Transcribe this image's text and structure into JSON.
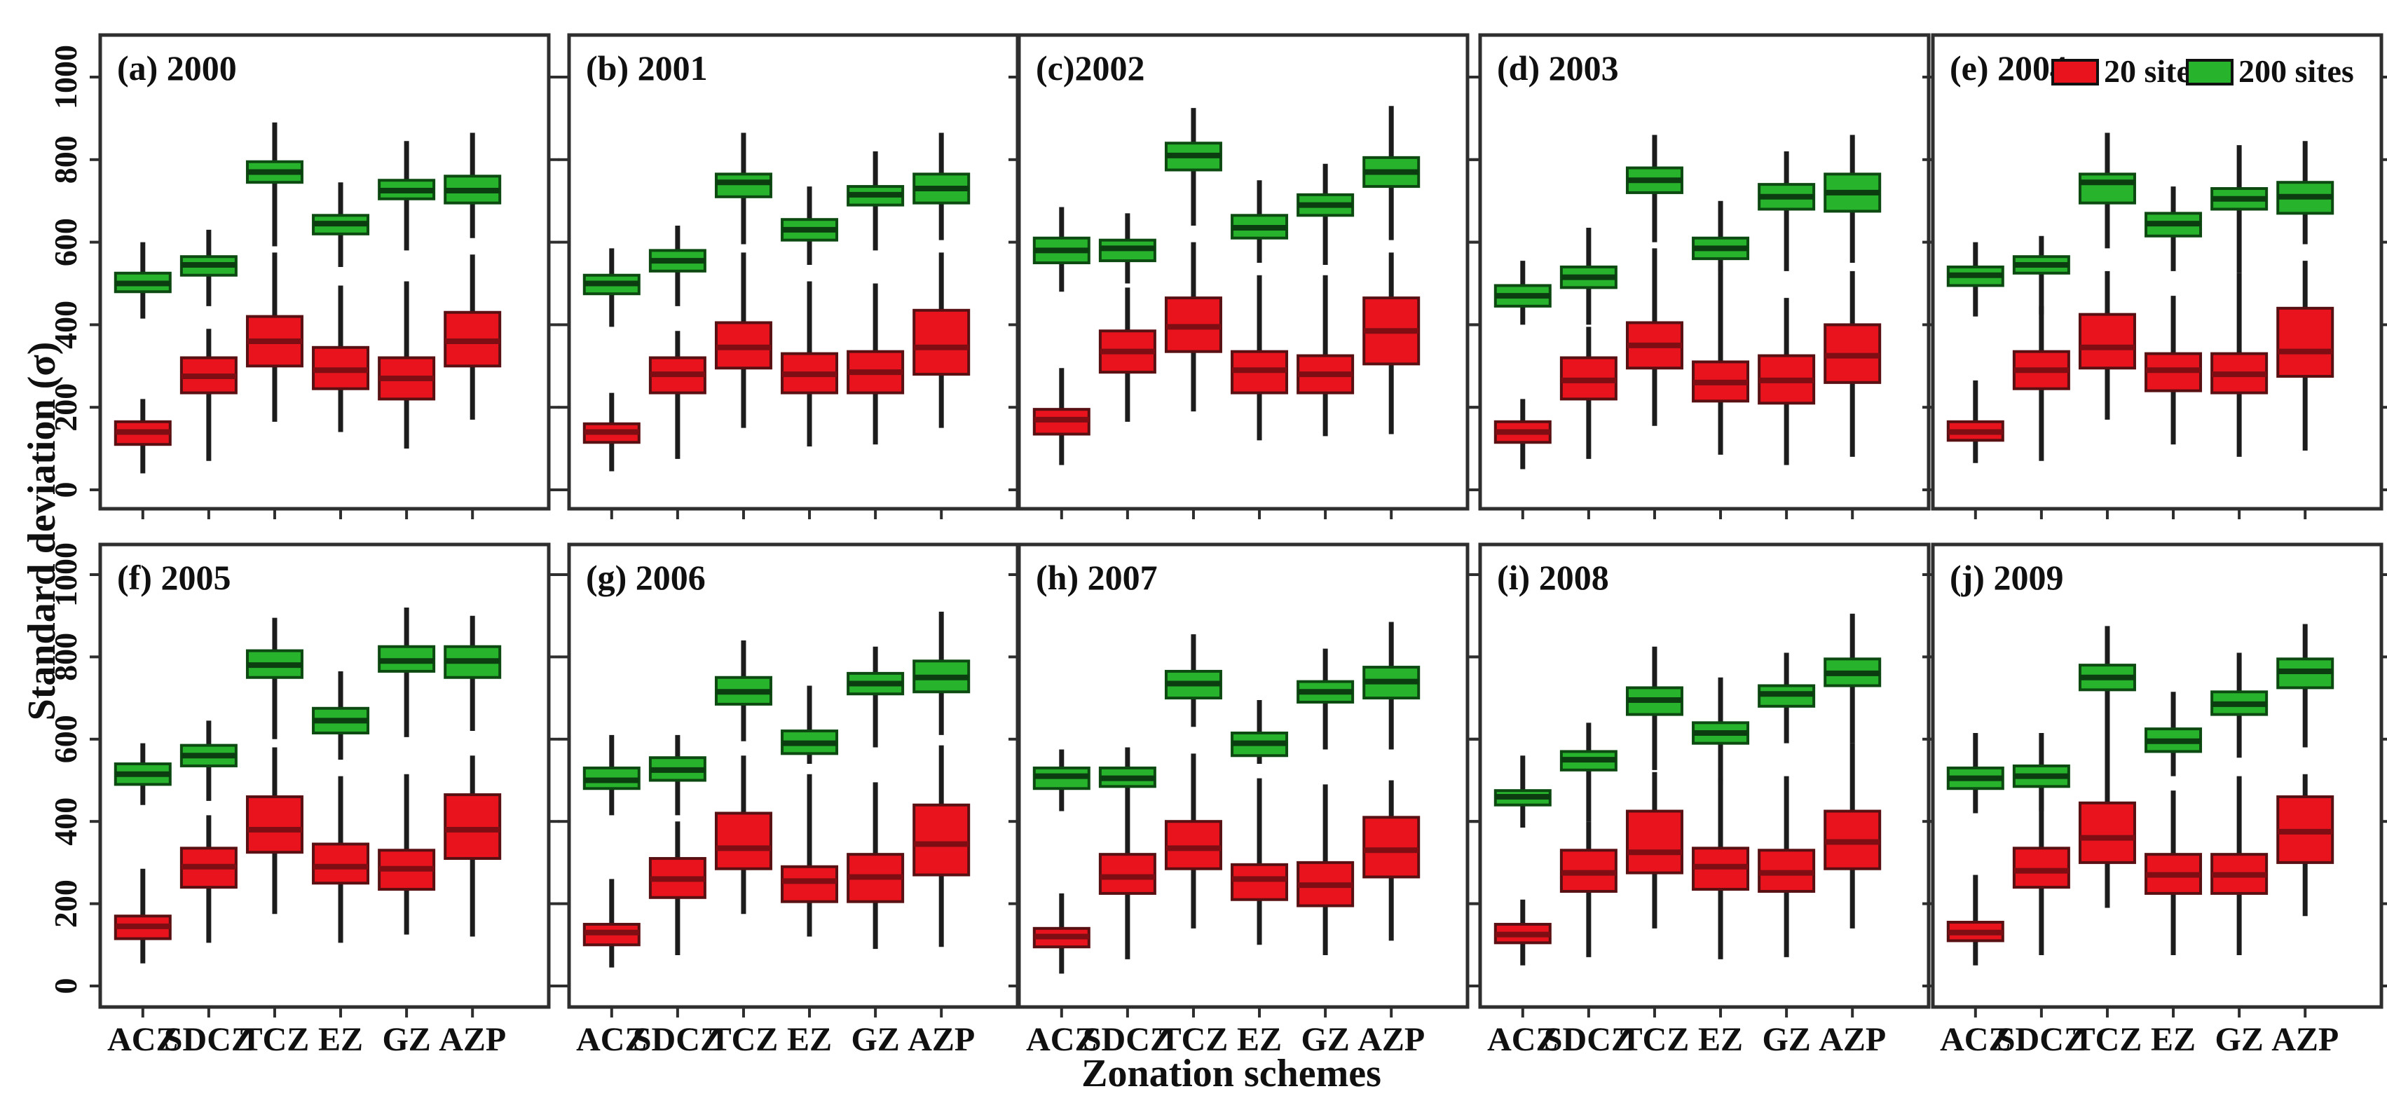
{
  "figure": {
    "ylabel": "Standard deviation (σ)",
    "xlabel": "Zonation schemes"
  },
  "legend": {
    "position": "top-right-of-panel-e",
    "items": [
      {
        "label": "20 sites",
        "color": "#e8131d"
      },
      {
        "label": "200 sites",
        "color": "#28b32c"
      }
    ]
  },
  "colors": {
    "red_fill": "#e8131d",
    "red_edge": "#591012",
    "red_median": "#7e0e14",
    "green_fill": "#28b32c",
    "green_edge": "#0d4a12",
    "green_median": "#0b3d10",
    "whisker": "#1c1c1c",
    "frame": "#2e2e2e",
    "text": "#101010"
  },
  "chart_data": {
    "type": "boxplot-grid",
    "title": "",
    "xlabel": "Zonation schemes",
    "ylabel": "Standard deviation (σ)",
    "ylim": [
      0,
      1000
    ],
    "yticks": [
      0,
      200,
      400,
      600,
      800,
      1000
    ],
    "grid": false,
    "categories": [
      "ACZ",
      "SDCZ",
      "TCZ",
      "EZ",
      "GZ",
      "AZP"
    ],
    "series_names": [
      "20 sites",
      "200 sites"
    ],
    "stats_order": [
      "whisker_low",
      "q1",
      "median",
      "q3",
      "whisker_high"
    ],
    "layout": {
      "rows": 2,
      "cols": 5
    },
    "panels": [
      {
        "label": "(a) 2000",
        "year": "2000",
        "sites20": [
          [
            40,
            110,
            140,
            165,
            220
          ],
          [
            70,
            235,
            275,
            320,
            390
          ],
          [
            165,
            300,
            360,
            420,
            575
          ],
          [
            140,
            245,
            290,
            345,
            495
          ],
          [
            100,
            220,
            270,
            320,
            505
          ],
          [
            170,
            300,
            360,
            430,
            570
          ]
        ],
        "sites200": [
          [
            415,
            480,
            500,
            525,
            600
          ],
          [
            445,
            520,
            545,
            565,
            630
          ],
          [
            590,
            745,
            770,
            795,
            890
          ],
          [
            540,
            620,
            645,
            665,
            745
          ],
          [
            580,
            705,
            725,
            750,
            845
          ],
          [
            610,
            695,
            725,
            760,
            865
          ]
        ]
      },
      {
        "label": "(b) 2001",
        "year": "2001",
        "sites20": [
          [
            45,
            115,
            140,
            160,
            235
          ],
          [
            75,
            235,
            280,
            320,
            385
          ],
          [
            150,
            295,
            345,
            405,
            575
          ],
          [
            105,
            235,
            280,
            330,
            505
          ],
          [
            110,
            235,
            285,
            335,
            500
          ],
          [
            150,
            280,
            345,
            435,
            575
          ]
        ],
        "sites200": [
          [
            395,
            475,
            500,
            520,
            585
          ],
          [
            445,
            530,
            555,
            580,
            640
          ],
          [
            595,
            710,
            745,
            765,
            865
          ],
          [
            545,
            605,
            630,
            655,
            735
          ],
          [
            580,
            690,
            715,
            735,
            820
          ],
          [
            605,
            695,
            730,
            765,
            865
          ]
        ]
      },
      {
        "label": "(c)2002",
        "year": "2002",
        "sites20": [
          [
            60,
            135,
            170,
            195,
            295
          ],
          [
            165,
            285,
            335,
            385,
            490
          ],
          [
            190,
            335,
            395,
            465,
            600
          ],
          [
            120,
            235,
            290,
            335,
            520
          ],
          [
            130,
            235,
            280,
            325,
            520
          ],
          [
            135,
            305,
            385,
            465,
            575
          ]
        ],
        "sites200": [
          [
            480,
            550,
            580,
            610,
            685
          ],
          [
            500,
            555,
            585,
            605,
            670
          ],
          [
            640,
            775,
            810,
            840,
            925
          ],
          [
            550,
            610,
            635,
            665,
            750
          ],
          [
            545,
            665,
            690,
            715,
            790
          ],
          [
            605,
            735,
            770,
            805,
            930
          ]
        ]
      },
      {
        "label": "(d) 2003",
        "year": "2003",
        "sites20": [
          [
            50,
            115,
            140,
            165,
            220
          ],
          [
            75,
            220,
            265,
            320,
            395
          ],
          [
            155,
            295,
            350,
            405,
            585
          ],
          [
            85,
            215,
            260,
            310,
            545
          ],
          [
            60,
            210,
            265,
            325,
            465
          ],
          [
            80,
            260,
            325,
            400,
            530
          ]
        ],
        "sites200": [
          [
            400,
            445,
            470,
            495,
            555
          ],
          [
            400,
            490,
            515,
            540,
            635
          ],
          [
            600,
            720,
            750,
            780,
            860
          ],
          [
            530,
            560,
            585,
            610,
            700
          ],
          [
            530,
            680,
            710,
            740,
            820
          ],
          [
            550,
            675,
            720,
            765,
            860
          ]
        ]
      },
      {
        "label": "(e) 2004",
        "year": "2004",
        "sites20": [
          [
            65,
            120,
            140,
            165,
            265
          ],
          [
            70,
            245,
            290,
            335,
            445
          ],
          [
            170,
            295,
            345,
            425,
            530
          ],
          [
            110,
            240,
            290,
            330,
            470
          ],
          [
            80,
            235,
            280,
            330,
            525
          ],
          [
            95,
            275,
            335,
            440,
            555
          ]
        ],
        "sites200": [
          [
            420,
            495,
            520,
            540,
            600
          ],
          [
            425,
            525,
            545,
            565,
            615
          ],
          [
            585,
            695,
            745,
            765,
            865
          ],
          [
            530,
            615,
            645,
            670,
            735
          ],
          [
            525,
            680,
            705,
            730,
            835
          ],
          [
            595,
            670,
            710,
            745,
            845
          ]
        ]
      },
      {
        "label": "(f) 2005",
        "year": "2005",
        "sites20": [
          [
            55,
            115,
            145,
            170,
            285
          ],
          [
            105,
            240,
            290,
            335,
            415
          ],
          [
            175,
            325,
            380,
            460,
            580
          ],
          [
            105,
            250,
            290,
            345,
            510
          ],
          [
            125,
            235,
            285,
            330,
            515
          ],
          [
            120,
            310,
            380,
            465,
            560
          ]
        ],
        "sites200": [
          [
            440,
            490,
            515,
            540,
            590
          ],
          [
            450,
            535,
            560,
            585,
            645
          ],
          [
            600,
            750,
            780,
            815,
            895
          ],
          [
            550,
            615,
            645,
            675,
            765
          ],
          [
            605,
            765,
            790,
            825,
            920
          ],
          [
            620,
            750,
            790,
            825,
            900
          ]
        ]
      },
      {
        "label": "(g) 2006",
        "year": "2006",
        "sites20": [
          [
            45,
            100,
            130,
            150,
            260
          ],
          [
            75,
            215,
            260,
            310,
            400
          ],
          [
            175,
            285,
            335,
            420,
            560
          ],
          [
            120,
            205,
            255,
            290,
            515
          ],
          [
            90,
            205,
            265,
            320,
            495
          ],
          [
            95,
            270,
            345,
            440,
            585
          ]
        ],
        "sites200": [
          [
            415,
            480,
            500,
            530,
            610
          ],
          [
            415,
            500,
            525,
            555,
            610
          ],
          [
            595,
            685,
            715,
            750,
            840
          ],
          [
            540,
            565,
            590,
            620,
            730
          ],
          [
            580,
            710,
            735,
            760,
            825
          ],
          [
            610,
            715,
            750,
            790,
            910
          ]
        ]
      },
      {
        "label": "(h) 2007",
        "year": "2007",
        "sites20": [
          [
            30,
            95,
            120,
            140,
            225
          ],
          [
            65,
            225,
            265,
            320,
            425
          ],
          [
            140,
            285,
            335,
            400,
            565
          ],
          [
            100,
            210,
            260,
            295,
            505
          ],
          [
            75,
            195,
            245,
            300,
            490
          ],
          [
            110,
            265,
            330,
            410,
            500
          ]
        ],
        "sites200": [
          [
            425,
            480,
            510,
            530,
            575
          ],
          [
            425,
            485,
            505,
            530,
            580
          ],
          [
            630,
            700,
            735,
            765,
            855
          ],
          [
            540,
            560,
            590,
            615,
            695
          ],
          [
            575,
            690,
            715,
            740,
            820
          ],
          [
            575,
            700,
            740,
            775,
            885
          ]
        ]
      },
      {
        "label": "(i) 2008",
        "year": "2008",
        "sites20": [
          [
            50,
            105,
            125,
            150,
            210
          ],
          [
            70,
            230,
            275,
            330,
            400
          ],
          [
            140,
            275,
            325,
            425,
            520
          ],
          [
            65,
            235,
            290,
            335,
            505
          ],
          [
            70,
            230,
            275,
            330,
            510
          ],
          [
            140,
            285,
            350,
            425,
            590
          ]
        ],
        "sites200": [
          [
            385,
            440,
            460,
            475,
            560
          ],
          [
            400,
            525,
            550,
            570,
            640
          ],
          [
            525,
            660,
            695,
            725,
            825
          ],
          [
            490,
            590,
            615,
            640,
            750
          ],
          [
            590,
            680,
            710,
            730,
            810
          ],
          [
            590,
            730,
            760,
            795,
            905
          ]
        ]
      },
      {
        "label": "(j) 2009",
        "year": "2009",
        "sites20": [
          [
            50,
            110,
            130,
            155,
            270
          ],
          [
            75,
            240,
            280,
            335,
            485
          ],
          [
            190,
            300,
            360,
            445,
            535
          ],
          [
            75,
            225,
            270,
            320,
            475
          ],
          [
            75,
            225,
            270,
            320,
            510
          ],
          [
            170,
            300,
            375,
            460,
            515
          ]
        ],
        "sites200": [
          [
            420,
            480,
            505,
            530,
            615
          ],
          [
            425,
            485,
            510,
            535,
            615
          ],
          [
            535,
            720,
            750,
            780,
            875
          ],
          [
            510,
            570,
            595,
            625,
            715
          ],
          [
            555,
            660,
            685,
            715,
            810
          ],
          [
            580,
            725,
            765,
            795,
            880
          ]
        ]
      }
    ]
  }
}
